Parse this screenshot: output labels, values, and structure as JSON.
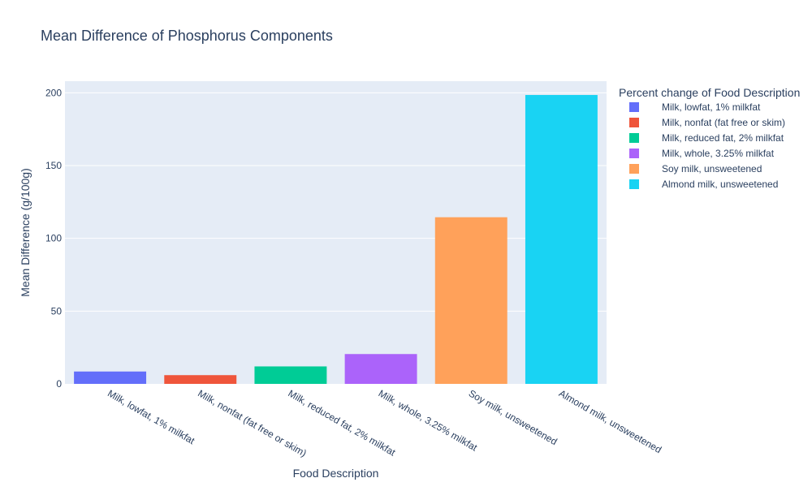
{
  "chart_data": {
    "type": "bar",
    "title": "Mean Difference of Phosphorus Components",
    "xlabel": "Food Description",
    "ylabel": "Mean Difference (g/100g)",
    "ylim": [
      0,
      208
    ],
    "yticks": [
      0,
      50,
      100,
      150,
      200
    ],
    "grid": true,
    "legend_title": "Percent change of Food Description",
    "legend_position": "right",
    "categories": [
      "Milk, lowfat, 1% milkfat",
      "Milk, nonfat (fat free or skim)",
      "Milk, reduced fat, 2% milkfat",
      "Milk, whole, 3.25% milkfat",
      "Soy milk, unsweetened",
      "Almond milk, unsweetened"
    ],
    "values": [
      8.5,
      6,
      12,
      20.5,
      114.5,
      198.5
    ],
    "colors": [
      "#636efa",
      "#ef553b",
      "#00cc96",
      "#ab63fa",
      "#ffa15a",
      "#19d3f3"
    ],
    "plot_background": "#e5ecf6"
  }
}
